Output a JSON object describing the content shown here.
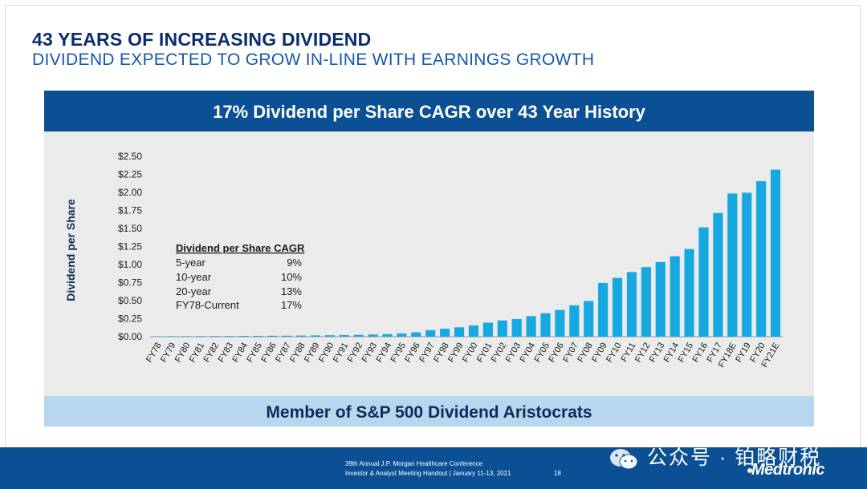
{
  "slide": {
    "title": "43 YEARS OF INCREASING DIVIDEND",
    "subtitle": "DIVIDEND EXPECTED TO GROW IN-LINE WITH EARNINGS GROWTH"
  },
  "banner": {
    "text": "17% Dividend per Share CAGR over 43 Year History"
  },
  "bottom_banner": {
    "text": "Member of S&P 500 Dividend Aristocrats"
  },
  "cagr_table": {
    "header": "Dividend per Share CAGR",
    "rows": [
      {
        "label": "5-year",
        "value": "9%"
      },
      {
        "label": "10-year",
        "value": "10%"
      },
      {
        "label": "20-year",
        "value": "13%"
      },
      {
        "label": "FY78-Current",
        "value": "17%"
      }
    ]
  },
  "footer": {
    "line1": "39th Annual J.P. Morgan Healthcare Conference",
    "line2": "Investor & Analyst Meeting Handout  |  January 11-13, 2021",
    "page_number": "18",
    "watermark": "公众号 · 铂略财税",
    "logo": "Medtronic"
  },
  "colors": {
    "bar": "#17a8e0",
    "banner": "#0b4f94",
    "title": "#0a2d6e",
    "subtitle": "#1558a8",
    "panel": "#ebebeb",
    "bottom_banner": "#b7d7ee"
  },
  "chart_data": {
    "type": "bar",
    "title": "17% Dividend per Share CAGR over 43 Year History",
    "xlabel": "",
    "ylabel": "Dividend per Share",
    "ylim": [
      0,
      2.5
    ],
    "yticks": [
      "$0.00",
      "$0.25",
      "$0.50",
      "$0.75",
      "$1.00",
      "$1.25",
      "$1.50",
      "$1.75",
      "$2.00",
      "$2.25",
      "$2.50"
    ],
    "ytick_values": [
      0,
      0.25,
      0.5,
      0.75,
      1.0,
      1.25,
      1.5,
      1.75,
      2.0,
      2.25,
      2.5
    ],
    "grid": false,
    "categories": [
      "FY78",
      "FY79",
      "FY80",
      "FY81",
      "FY82",
      "FY83",
      "FY84",
      "FY85",
      "FY86",
      "FY87",
      "FY88",
      "FY89",
      "FY90",
      "FY91",
      "FY92",
      "FY93",
      "FY94",
      "FY95",
      "FY96",
      "FY97",
      "FY98",
      "FY99",
      "FY00",
      "FY01",
      "FY02",
      "FY03",
      "FY04",
      "FY05",
      "FY06",
      "FY07",
      "FY08",
      "FY09",
      "FY10",
      "FY11",
      "FY12",
      "FY13",
      "FY14",
      "FY15",
      "FY16",
      "FY17",
      "FY18E",
      "FY19",
      "FY20",
      "FY21E"
    ],
    "values": [
      0.005,
      0.006,
      0.007,
      0.008,
      0.009,
      0.01,
      0.011,
      0.012,
      0.013,
      0.014,
      0.016,
      0.018,
      0.02,
      0.022,
      0.025,
      0.03,
      0.036,
      0.045,
      0.06,
      0.09,
      0.11,
      0.13,
      0.155,
      0.195,
      0.225,
      0.245,
      0.285,
      0.325,
      0.37,
      0.435,
      0.495,
      0.745,
      0.815,
      0.895,
      0.965,
      1.035,
      1.115,
      1.215,
      1.515,
      1.715,
      1.985,
      1.995,
      2.155,
      2.315
    ]
  }
}
